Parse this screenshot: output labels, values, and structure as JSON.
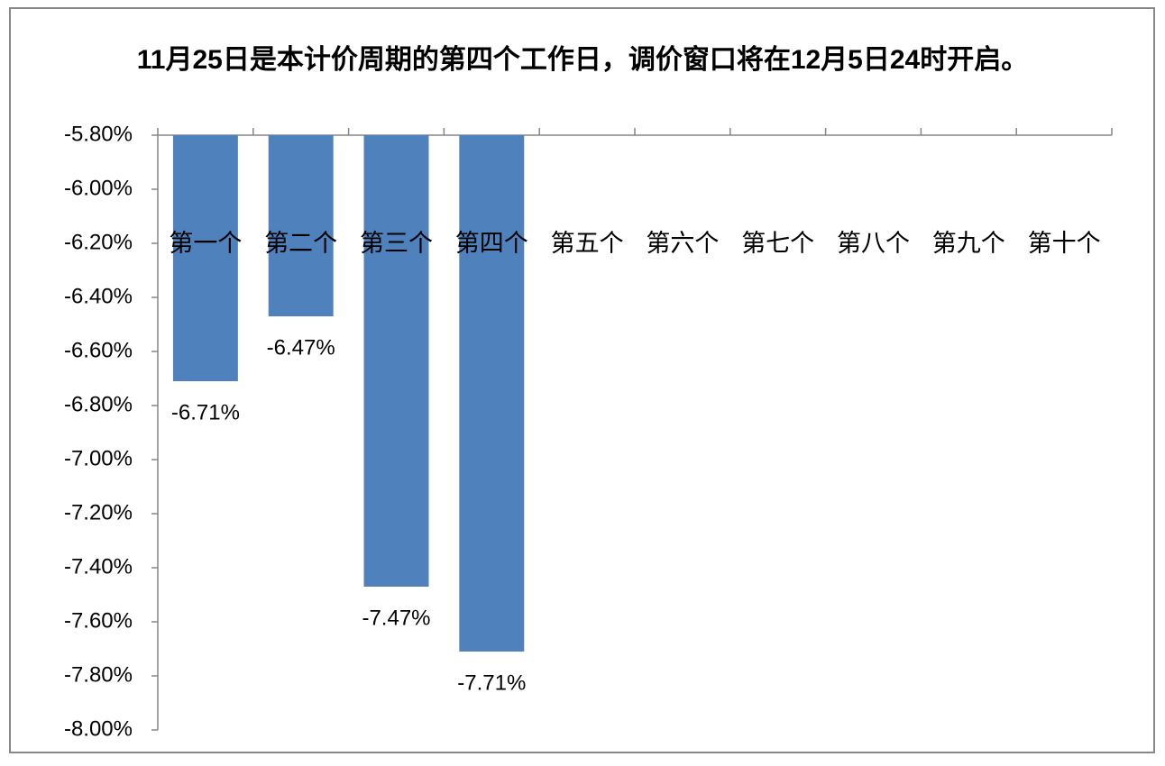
{
  "chart_data": {
    "type": "bar",
    "title": "11月25日是本计价周期的第四个工作日，调价窗口将在12月5日24时开启。",
    "categories": [
      "第一个",
      "第二个",
      "第三个",
      "第四个",
      "第五个",
      "第六个",
      "第七个",
      "第八个",
      "第九个",
      "第十个"
    ],
    "values": [
      -6.71,
      -6.47,
      -7.47,
      -7.71,
      null,
      null,
      null,
      null,
      null,
      null
    ],
    "value_labels": [
      "-6.71%",
      "-6.47%",
      "-7.47%",
      "-7.71%",
      null,
      null,
      null,
      null,
      null,
      null
    ],
    "color": "#4f81bd",
    "ylim": [
      -8.0,
      -5.8
    ],
    "yticks": [
      {
        "value": -5.8,
        "label": "-5.80%"
      },
      {
        "value": -6.0,
        "label": "-6.00%"
      },
      {
        "value": -6.2,
        "label": "-6.20%"
      },
      {
        "value": -6.4,
        "label": "-6.40%"
      },
      {
        "value": -6.6,
        "label": "-6.60%"
      },
      {
        "value": -6.8,
        "label": "-6.80%"
      },
      {
        "value": -7.0,
        "label": "-7.00%"
      },
      {
        "value": -7.2,
        "label": "-7.20%"
      },
      {
        "value": -7.4,
        "label": "-7.40%"
      },
      {
        "value": -7.6,
        "label": "-7.60%"
      },
      {
        "value": -7.8,
        "label": "-7.80%"
      },
      {
        "value": -8.0,
        "label": "-8.00%"
      }
    ],
    "grid": false
  }
}
